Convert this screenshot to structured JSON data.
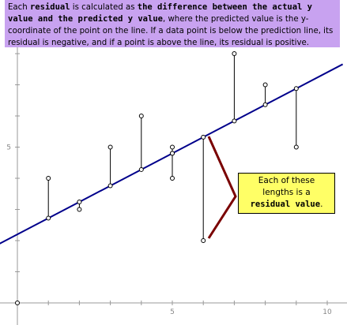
{
  "caption": {
    "part1": "Each ",
    "bold1": "residual",
    "part2": " is calculated as ",
    "bold2": "the difference between the actual y value and the predicted y value",
    "part3": ", where the predicted value is the y-coordinate of the point on the line. If a data point is below the prediction line, its residual is negative, and if a point is above the line, its residual is positive."
  },
  "callout": {
    "line1": "Each of these",
    "line2": "lengths is a",
    "bold": "residual value",
    "end": "."
  },
  "colors": {
    "caption_bg": "#c8a2f0",
    "line": "#00008b",
    "arrow": "#7a0000",
    "callout_bg": "#ffff66"
  },
  "chart_data": {
    "type": "scatter",
    "x_ticks": [
      "5",
      "10"
    ],
    "y_ticks": [
      "5"
    ],
    "regression_line": {
      "intercept": 2.2,
      "slope": 0.52
    },
    "points": [
      {
        "x": 0,
        "y": 0
      },
      {
        "x": 1,
        "y": 4
      },
      {
        "x": 2,
        "y": 3
      },
      {
        "x": 3,
        "y": 5
      },
      {
        "x": 4,
        "y": 6
      },
      {
        "x": 5,
        "y": 4
      },
      {
        "x": 5,
        "y": 5
      },
      {
        "x": 6,
        "y": 2
      },
      {
        "x": 7,
        "y": 8
      },
      {
        "x": 8,
        "y": 7
      },
      {
        "x": 9,
        "y": 5
      }
    ],
    "residual_points": [
      {
        "x": 1,
        "y": 4
      },
      {
        "x": 2,
        "y": 3
      },
      {
        "x": 3,
        "y": 5
      },
      {
        "x": 4,
        "y": 6
      },
      {
        "x": 5,
        "y": 5
      },
      {
        "x": 5,
        "y": 4
      },
      {
        "x": 6,
        "y": 2
      },
      {
        "x": 7,
        "y": 8
      },
      {
        "x": 8,
        "y": 7
      },
      {
        "x": 9,
        "y": 5
      }
    ]
  }
}
